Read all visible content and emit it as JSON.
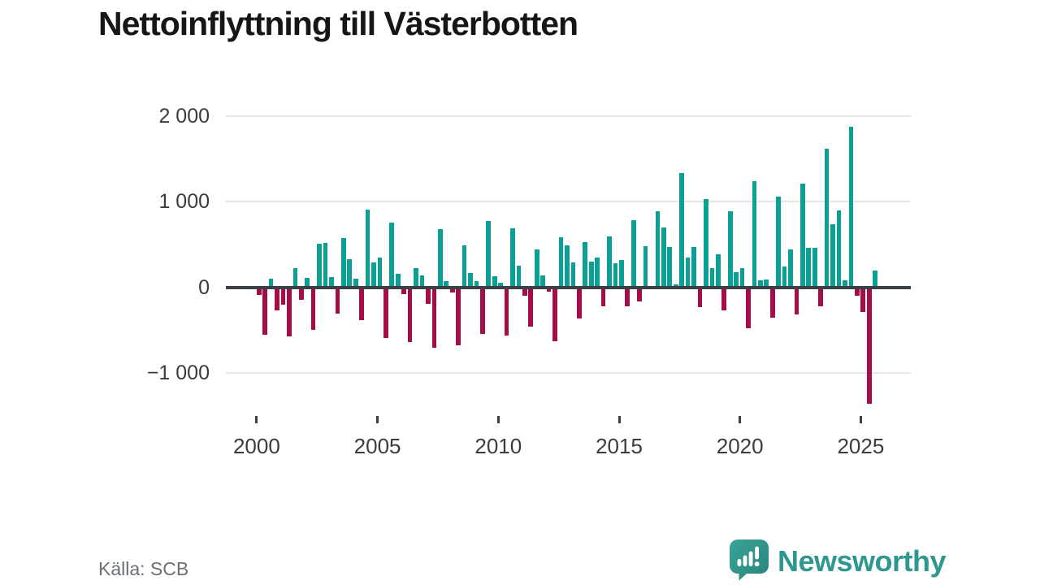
{
  "title": "Nettoinflyttning till Västerbotten",
  "source": "Källa: SCB",
  "branding": {
    "name": "Newsworthy",
    "icon": "bar-chart-speech-bubble-icon",
    "color": "#2f988e"
  },
  "colors": {
    "positive_bar": "#0aa096",
    "negative_bar": "#a50d49",
    "zero_line": "#3a4046",
    "gridline": "#e7e7e7",
    "axis_text": "#3c3c3c",
    "title_text": "#161616",
    "source_text": "#6b7078",
    "background": "#ffffff"
  },
  "chart_data": {
    "type": "bar",
    "title": "Nettoinflyttning till Västerbotten",
    "xlabel": "",
    "ylabel": "",
    "grid": "horizontal",
    "legend": "none",
    "ylim": [
      -1500,
      2150
    ],
    "y_ticks": [
      2000,
      1000,
      0,
      -1000
    ],
    "y_tick_labels": [
      "2 000",
      "1 000",
      "0",
      "−1 000"
    ],
    "x_tick_years": [
      2000,
      2005,
      2010,
      2015,
      2020,
      2025
    ],
    "x_tick_labels": [
      "2000",
      "2005",
      "2010",
      "2015",
      "2020",
      "2025"
    ],
    "positive_color": "#0aa096",
    "negative_color": "#a50d49",
    "periods": [
      "2000Q1",
      "2000Q2",
      "2000Q3",
      "2000Q4",
      "2001Q1",
      "2001Q2",
      "2001Q3",
      "2001Q4",
      "2002Q1",
      "2002Q2",
      "2002Q3",
      "2002Q4",
      "2003Q1",
      "2003Q2",
      "2003Q3",
      "2003Q4",
      "2004Q1",
      "2004Q2",
      "2004Q3",
      "2004Q4",
      "2005Q1",
      "2005Q2",
      "2005Q3",
      "2005Q4",
      "2006Q1",
      "2006Q2",
      "2006Q3",
      "2006Q4",
      "2007Q1",
      "2007Q2",
      "2007Q3",
      "2007Q4",
      "2008Q1",
      "2008Q2",
      "2008Q3",
      "2008Q4",
      "2009Q1",
      "2009Q2",
      "2009Q3",
      "2009Q4",
      "2010Q1",
      "2010Q2",
      "2010Q3",
      "2010Q4",
      "2011Q1",
      "2011Q2",
      "2011Q3",
      "2011Q4",
      "2012Q1",
      "2012Q2",
      "2012Q3",
      "2012Q4",
      "2013Q1",
      "2013Q2",
      "2013Q3",
      "2013Q4",
      "2014Q1",
      "2014Q2",
      "2014Q3",
      "2014Q4",
      "2015Q1",
      "2015Q2",
      "2015Q3",
      "2015Q4",
      "2016Q1",
      "2016Q2",
      "2016Q3",
      "2016Q4",
      "2017Q1",
      "2017Q2",
      "2017Q3",
      "2017Q4",
      "2018Q1",
      "2018Q2",
      "2018Q3",
      "2018Q4",
      "2019Q1",
      "2019Q2",
      "2019Q3",
      "2019Q4",
      "2020Q1",
      "2020Q2",
      "2020Q3",
      "2020Q4",
      "2021Q1",
      "2021Q2",
      "2021Q3",
      "2021Q4",
      "2022Q1",
      "2022Q2",
      "2022Q3",
      "2022Q4",
      "2023Q1",
      "2023Q2",
      "2023Q3",
      "2023Q4",
      "2024Q1",
      "2024Q2",
      "2024Q3",
      "2024Q4",
      "2025Q1",
      "2025Q2",
      "2025Q3"
    ],
    "values": [
      -90,
      -555,
      100,
      -275,
      -205,
      -570,
      225,
      -150,
      110,
      -495,
      510,
      520,
      115,
      -305,
      570,
      330,
      100,
      -380,
      910,
      290,
      350,
      -595,
      755,
      155,
      -80,
      -645,
      220,
      140,
      -190,
      -710,
      675,
      70,
      -65,
      -675,
      485,
      165,
      70,
      -550,
      770,
      125,
      55,
      -565,
      690,
      250,
      -95,
      -465,
      440,
      140,
      -55,
      -635,
      580,
      485,
      285,
      -370,
      525,
      300,
      350,
      -220,
      595,
      280,
      320,
      -220,
      780,
      -170,
      475,
      -20,
      885,
      695,
      470,
      30,
      1330,
      345,
      470,
      -235,
      1030,
      220,
      380,
      -275,
      885,
      180,
      225,
      -480,
      1240,
      80,
      95,
      -360,
      1055,
      245,
      440,
      -315,
      1210,
      465,
      465,
      -220,
      1620,
      740,
      900,
      80,
      1880,
      -100,
      -285,
      -1360,
      195
    ]
  }
}
